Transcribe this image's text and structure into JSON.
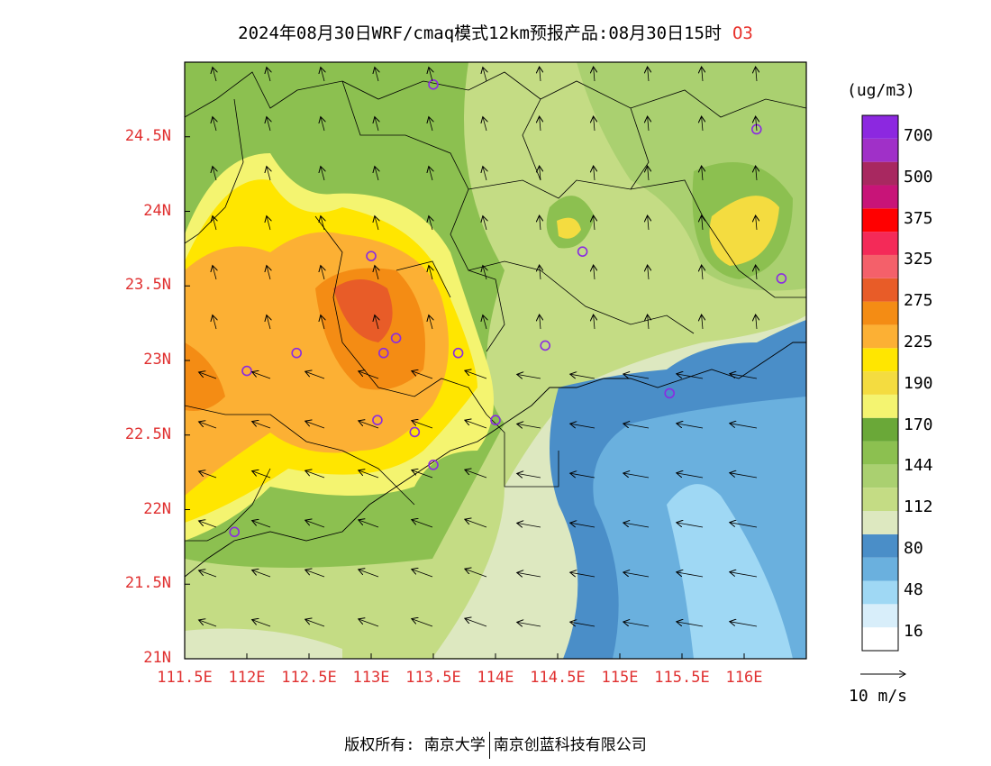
{
  "title": {
    "main": "2024年08月30日WRF/cmaq模式12km预报产品:08月30日15时",
    "species": "O3"
  },
  "axes": {
    "lat_ticks": [
      "24.5N",
      "24N",
      "23.5N",
      "23N",
      "22.5N",
      "22N",
      "21.5N",
      "21N"
    ],
    "lon_ticks": [
      "111.5E",
      "112E",
      "112.5E",
      "113E",
      "113.5E",
      "114E",
      "114.5E",
      "115E",
      "115.5E",
      "116E"
    ]
  },
  "colorbar": {
    "unit": "(ug/m3)",
    "labels": [
      "700",
      "500",
      "375",
      "325",
      "275",
      "225",
      "190",
      "170",
      "144",
      "112",
      "80",
      "48",
      "16"
    ],
    "colors": [
      "#ffffff",
      "#d8eefa",
      "#9fd8f4",
      "#6ab0de",
      "#4a8ec8",
      "#dde8c0",
      "#c4dc84",
      "#aad070",
      "#8cc050",
      "#6aa838",
      "#f4f470",
      "#f4dc40",
      "#ffe600",
      "#fcb034",
      "#f48c14",
      "#e85c28",
      "#f4606a",
      "#f42a58",
      "#ff0000",
      "#c81478",
      "#a82860",
      "#a030c8",
      "#8c28e0"
    ],
    "vector_label": "10 m/s",
    "vector_speed_ms": 10
  },
  "footer": {
    "copyright": "版权所有: 南京大学",
    "company": "南京创蓝科技有限公司"
  },
  "chart_data": {
    "type": "heatmap",
    "variable": "O3",
    "lat_range": [
      21,
      25
    ],
    "lon_range": [
      111.5,
      116.5
    ],
    "levels": [
      16,
      48,
      80,
      112,
      144,
      170,
      190,
      225,
      275,
      325,
      375,
      500,
      700
    ],
    "max_region_lon": 113.0,
    "max_region_lat": 23.3,
    "stations": [
      {
        "lon": 113.5,
        "lat": 24.85
      },
      {
        "lon": 116.1,
        "lat": 24.55
      },
      {
        "lon": 114.7,
        "lat": 23.73
      },
      {
        "lon": 116.3,
        "lat": 23.55
      },
      {
        "lon": 113.0,
        "lat": 23.7
      },
      {
        "lon": 113.2,
        "lat": 23.15
      },
      {
        "lon": 112.4,
        "lat": 23.05
      },
      {
        "lon": 113.1,
        "lat": 23.05
      },
      {
        "lon": 113.7,
        "lat": 23.05
      },
      {
        "lon": 114.4,
        "lat": 23.1
      },
      {
        "lon": 112.0,
        "lat": 22.93
      },
      {
        "lon": 113.05,
        "lat": 22.6
      },
      {
        "lon": 113.35,
        "lat": 22.52
      },
      {
        "lon": 113.5,
        "lat": 22.3
      },
      {
        "lon": 114.0,
        "lat": 22.6
      },
      {
        "lon": 115.4,
        "lat": 22.78
      },
      {
        "lon": 111.9,
        "lat": 21.85
      }
    ]
  }
}
